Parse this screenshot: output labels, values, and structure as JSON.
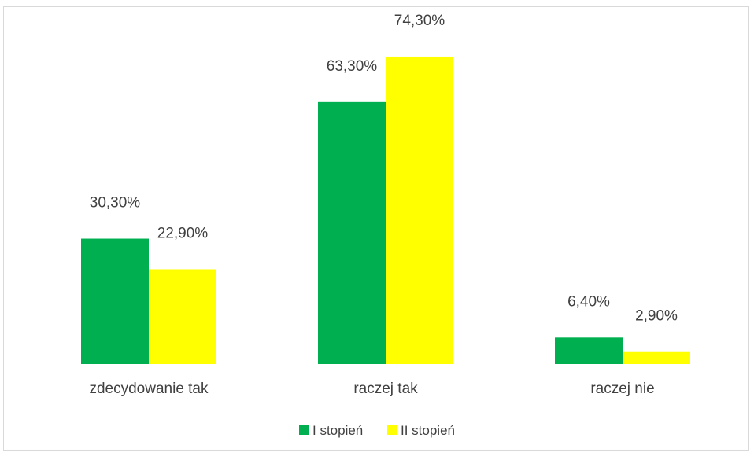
{
  "chart_data": {
    "type": "bar",
    "categories": [
      "zdecydowanie tak",
      "raczej tak",
      "raczej nie"
    ],
    "series": [
      {
        "name": "I stopień",
        "color": "#00b050",
        "values": [
          30.3,
          63.3,
          6.4
        ],
        "labels": [
          "30,30%",
          "63,30%",
          "6,40%"
        ]
      },
      {
        "name": "II stopień",
        "color": "#ffff00",
        "values": [
          22.9,
          74.3,
          2.9
        ],
        "labels": [
          "22,90%",
          "74,30%",
          "2,90%"
        ]
      }
    ],
    "ylim": [
      0,
      76
    ],
    "unit": "%",
    "grid": false,
    "legend_position": "bottom"
  }
}
